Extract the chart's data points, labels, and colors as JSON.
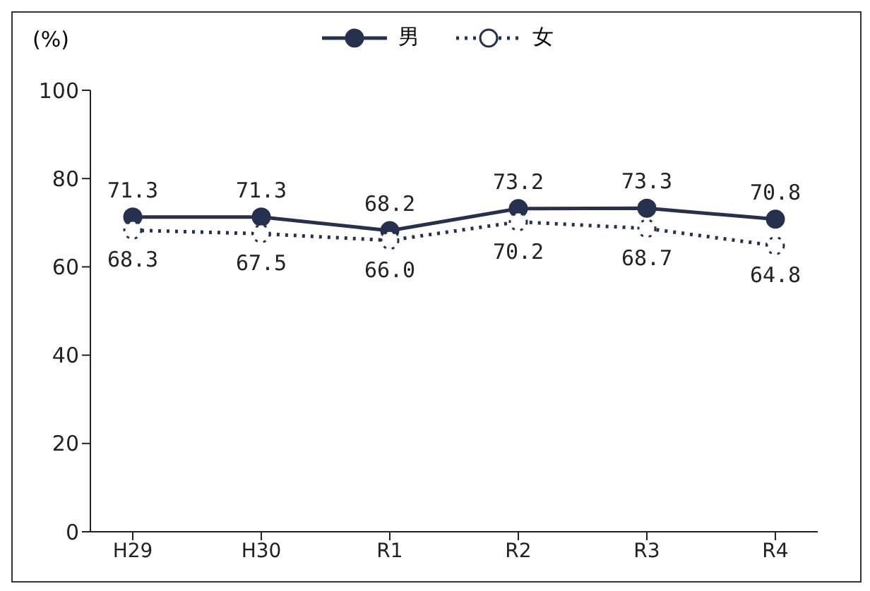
{
  "chart_data": {
    "type": "line",
    "ylabel": "(%)",
    "categories": [
      "H29",
      "H30",
      "R1",
      "R2",
      "R3",
      "R4"
    ],
    "series": [
      {
        "name": "男",
        "color": "#26304f",
        "line_style": "solid",
        "values": [
          71.3,
          71.3,
          68.2,
          73.2,
          73.3,
          70.8
        ],
        "value_labels": [
          "71.3",
          "71.3",
          "68.2",
          "73.2",
          "73.3",
          "70.8"
        ]
      },
      {
        "name": "女",
        "color": "#26304f",
        "line_style": "dotted",
        "values": [
          68.3,
          67.5,
          66.0,
          70.2,
          68.7,
          64.8
        ],
        "value_labels": [
          "68.3",
          "67.5",
          "66.0",
          "70.2",
          "68.7",
          "64.8"
        ]
      }
    ],
    "ylim": [
      0,
      100
    ],
    "yticks": [
      0,
      20,
      40,
      60,
      80,
      100
    ],
    "grid": false,
    "legend": "top",
    "marker": "circle"
  }
}
